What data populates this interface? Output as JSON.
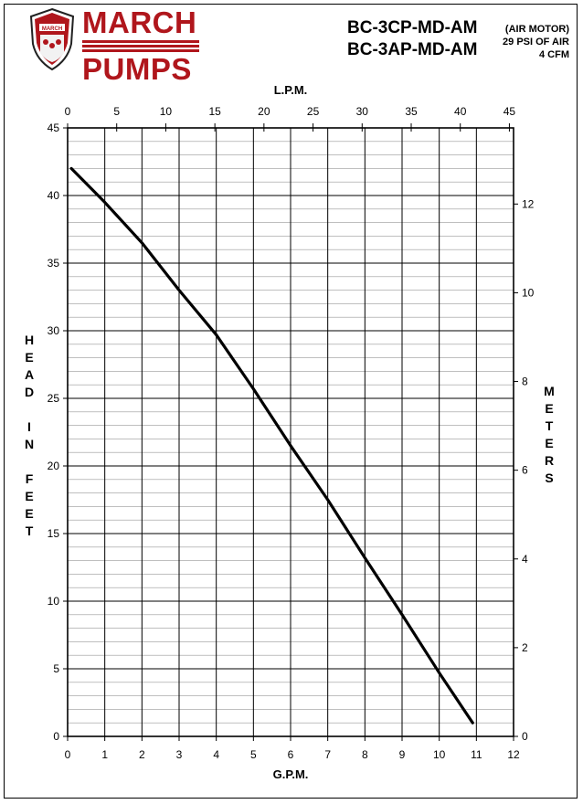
{
  "header": {
    "brand_top": "MARCH",
    "brand_bottom": "PUMPS",
    "seal_text": "MARCH",
    "model_1": "BC-3CP-MD-AM",
    "model_2": "BC-3AP-MD-AM",
    "motor_line_1": "(AIR MOTOR)",
    "motor_line_2": "29 PSI OF AIR",
    "motor_line_3": "4 CFM",
    "brand_color": "#b0161c"
  },
  "chart_data": {
    "type": "line",
    "xlabel_bottom": "G.P.M.",
    "xlabel_top": "L.P.M.",
    "ylabel_left": "HEAD IN FEET",
    "ylabel_right": "METERS",
    "xlim": [
      0,
      12
    ],
    "ylim": [
      0,
      45
    ],
    "x_ticks": [
      "0",
      "1",
      "2",
      "3",
      "4",
      "5",
      "6",
      "7",
      "8",
      "9",
      "10",
      "11",
      "12"
    ],
    "y_ticks": [
      "0",
      "5",
      "10",
      "15",
      "20",
      "25",
      "30",
      "35",
      "40",
      "45"
    ],
    "top_ticks": [
      "0",
      "5",
      "10",
      "15",
      "20",
      "25",
      "30",
      "35",
      "40",
      "45"
    ],
    "right_ticks": [
      "0",
      "2",
      "4",
      "6",
      "8",
      "10",
      "12"
    ],
    "grid": true,
    "series": [
      {
        "x": [
          0.1,
          1,
          2,
          3,
          4,
          5,
          6,
          7,
          8,
          9,
          10,
          10.9
        ],
        "y": [
          42,
          39.5,
          36.5,
          33,
          29.7,
          25.7,
          21.5,
          17.5,
          13.2,
          9,
          4.7,
          1
        ]
      }
    ]
  }
}
